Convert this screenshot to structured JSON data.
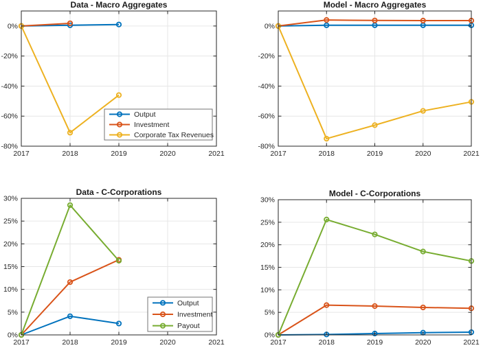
{
  "figure": {
    "background": "#ffffff",
    "colors": {
      "axis": "#262626",
      "grid": "#e6e6e6",
      "legend_border": "#737373",
      "legend_background": "#ffffff"
    }
  },
  "chart_data": [
    {
      "id": "data-macro-aggregates",
      "type": "line",
      "title": "Data - Macro Aggregates",
      "xlim": [
        2017,
        2021
      ],
      "ylim": [
        -80,
        10
      ],
      "xticks": [
        2017,
        2018,
        2019,
        2020,
        2021
      ],
      "xtick_labels": [
        "2017",
        "2018",
        "2019",
        "2020",
        "2021"
      ],
      "yticks": [
        0,
        -20,
        -40,
        -60,
        -80
      ],
      "ytick_labels": [
        "0%",
        "-20%",
        "-40%",
        "-60%",
        "-80%"
      ],
      "grid": true,
      "legend": {
        "visible": true,
        "entries": [
          "Output",
          "Investment",
          "Corporate Tax Revenues"
        ]
      },
      "series": [
        {
          "name": "Output",
          "color": "#0072BD",
          "x": [
            2017,
            2018,
            2019
          ],
          "values": [
            0,
            0.5,
            1.0
          ]
        },
        {
          "name": "Investment",
          "color": "#D95319",
          "x": [
            2017,
            2018
          ],
          "values": [
            0,
            1.8
          ]
        },
        {
          "name": "Corporate Tax Revenues",
          "color": "#EDB120",
          "x": [
            2017,
            2018,
            2019
          ],
          "values": [
            0,
            -71,
            -46
          ]
        }
      ]
    },
    {
      "id": "model-macro-aggregates",
      "type": "line",
      "title": "Model - Macro Aggregates",
      "xlim": [
        2017,
        2021
      ],
      "ylim": [
        -80,
        10
      ],
      "xticks": [
        2017,
        2018,
        2019,
        2020,
        2021
      ],
      "xtick_labels": [
        "2017",
        "2018",
        "2019",
        "2020",
        "2021"
      ],
      "yticks": [
        0,
        -20,
        -40,
        -60,
        -80
      ],
      "ytick_labels": [
        "0%",
        "-20%",
        "-40%",
        "-60%",
        "-80%"
      ],
      "grid": true,
      "legend": {
        "visible": false,
        "entries": []
      },
      "series": [
        {
          "name": "Output",
          "color": "#0072BD",
          "x": [
            2017,
            2018,
            2019,
            2020,
            2021
          ],
          "values": [
            0,
            0.5,
            0.5,
            0.5,
            0.5
          ]
        },
        {
          "name": "Investment",
          "color": "#D95319",
          "x": [
            2017,
            2018,
            2019,
            2020,
            2021
          ],
          "values": [
            0,
            4.0,
            3.7,
            3.6,
            3.6
          ]
        },
        {
          "name": "Corporate Tax Revenues",
          "color": "#EDB120",
          "x": [
            2017,
            2018,
            2019,
            2020,
            2021
          ],
          "values": [
            0,
            -75,
            -66,
            -56.5,
            -50.5
          ]
        }
      ]
    },
    {
      "id": "data-c-corporations",
      "type": "line",
      "title": "Data - C-Corporations",
      "xlim": [
        2017,
        2021
      ],
      "ylim": [
        0,
        30
      ],
      "xticks": [
        2017,
        2018,
        2019,
        2020,
        2021
      ],
      "xtick_labels": [
        "2017",
        "2018",
        "2019",
        "2020",
        "2021"
      ],
      "yticks": [
        30,
        25,
        20,
        15,
        10,
        5,
        0
      ],
      "ytick_labels": [
        "30%",
        "25%",
        "20%",
        "15%",
        "10%",
        "5%",
        "0%"
      ],
      "grid": true,
      "legend": {
        "visible": true,
        "entries": [
          "Output",
          "Investment",
          "Payout"
        ]
      },
      "series": [
        {
          "name": "Output",
          "color": "#0072BD",
          "x": [
            2017,
            2018,
            2019
          ],
          "values": [
            0,
            4.1,
            2.5
          ]
        },
        {
          "name": "Investment",
          "color": "#D95319",
          "x": [
            2017,
            2018,
            2019
          ],
          "values": [
            0,
            11.6,
            16.5
          ]
        },
        {
          "name": "Payout",
          "color": "#77AC30",
          "x": [
            2017,
            2018,
            2019
          ],
          "values": [
            0,
            28.5,
            16.3
          ]
        }
      ]
    },
    {
      "id": "model-c-corporations",
      "type": "line",
      "title": "Model - C-Corporations",
      "xlim": [
        2017,
        2021
      ],
      "ylim": [
        0,
        30
      ],
      "xticks": [
        2017,
        2018,
        2019,
        2020,
        2021
      ],
      "xtick_labels": [
        "2017",
        "2018",
        "2019",
        "2020",
        "2021"
      ],
      "yticks": [
        30,
        25,
        20,
        15,
        10,
        5,
        0
      ],
      "ytick_labels": [
        "30%",
        "25%",
        "20%",
        "15%",
        "10%",
        "5%",
        "0%"
      ],
      "grid": true,
      "legend": {
        "visible": false,
        "entries": []
      },
      "series": [
        {
          "name": "Output",
          "color": "#0072BD",
          "x": [
            2017,
            2018,
            2019,
            2020,
            2021
          ],
          "values": [
            0,
            0.1,
            0.3,
            0.5,
            0.6
          ]
        },
        {
          "name": "Investment",
          "color": "#D95319",
          "x": [
            2017,
            2018,
            2019,
            2020,
            2021
          ],
          "values": [
            0,
            6.6,
            6.4,
            6.1,
            5.9
          ]
        },
        {
          "name": "Payout",
          "color": "#77AC30",
          "x": [
            2017,
            2018,
            2019,
            2020,
            2021
          ],
          "values": [
            0,
            25.6,
            22.3,
            18.5,
            16.4
          ]
        }
      ]
    }
  ]
}
